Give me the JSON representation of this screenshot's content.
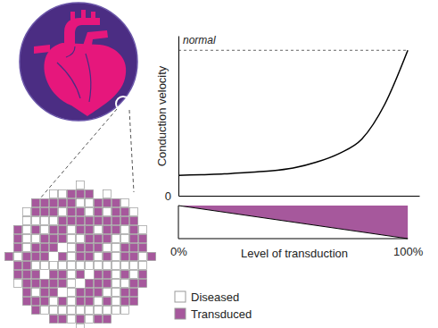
{
  "chart_data": {
    "type": "line",
    "x_label": "Level of transduction",
    "y_label": "Conduction velocity",
    "x": [
      0,
      10,
      20,
      30,
      40,
      50,
      60,
      70,
      80,
      90,
      100
    ],
    "values": [
      14,
      14.5,
      15,
      16,
      17,
      19,
      23,
      29,
      39,
      63,
      100
    ],
    "color": "#000000",
    "xlim": [
      0,
      105
    ],
    "ylim": [
      0,
      110
    ],
    "xticks": [
      {
        "value": 0,
        "label": "0%"
      },
      {
        "value": 100,
        "label": "100%"
      }
    ],
    "yticks": [
      0
    ],
    "annotations": [
      {
        "text": "normal",
        "y": 100
      }
    ],
    "composition": {
      "x": [
        0,
        100
      ],
      "series": [
        {
          "name": "Diseased",
          "color": "#ffffff",
          "values": [
            100,
            0
          ]
        },
        {
          "name": "Transduced",
          "color": "#a6589c",
          "values": [
            0,
            100
          ]
        }
      ]
    }
  }
}
